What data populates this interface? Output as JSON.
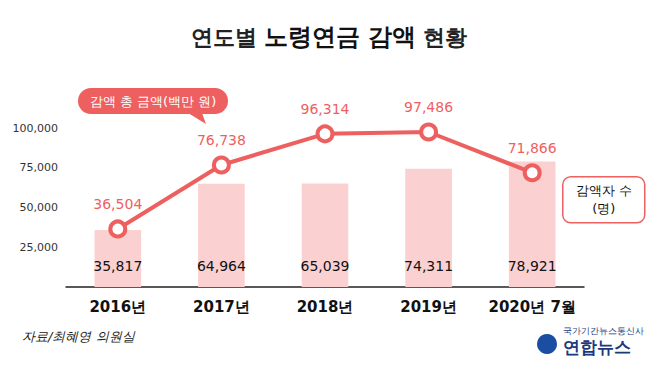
{
  "source": "자료/최혜영 의원실",
  "logo": {
    "agency": "국가기간뉴스통신사",
    "name": "연합뉴스"
  },
  "chart_data": {
    "type": "bar",
    "title": "연도별 노령연금 감액 현황",
    "categories": [
      "2016년",
      "2017년",
      "2018년",
      "2019년",
      "2020년 7월"
    ],
    "ylim": [
      0,
      100000
    ],
    "yticks": [
      {
        "value": 25000,
        "label": "25,000"
      },
      {
        "value": 50000,
        "label": "50,000"
      },
      {
        "value": 75000,
        "label": "75,000"
      },
      {
        "value": 100000,
        "label": "100,000"
      }
    ],
    "grid": false,
    "data_labels": true,
    "series": [
      {
        "name": "감액자 수\n(명)",
        "type": "bar",
        "color": "#fbd0d0",
        "values": [
          35817,
          64964,
          65039,
          74311,
          78921
        ],
        "value_labels": [
          "35,817",
          "64,964",
          "65,039",
          "74,311",
          "78,921"
        ]
      },
      {
        "name": "감액 총 금액(백만 원)",
        "type": "line",
        "color": "#ee5f5f",
        "marker": "circle",
        "values": [
          36504,
          76738,
          96314,
          97486,
          71866
        ],
        "value_labels": [
          "36,504",
          "76,738",
          "96,314",
          "97,486",
          "71,866"
        ]
      }
    ]
  }
}
